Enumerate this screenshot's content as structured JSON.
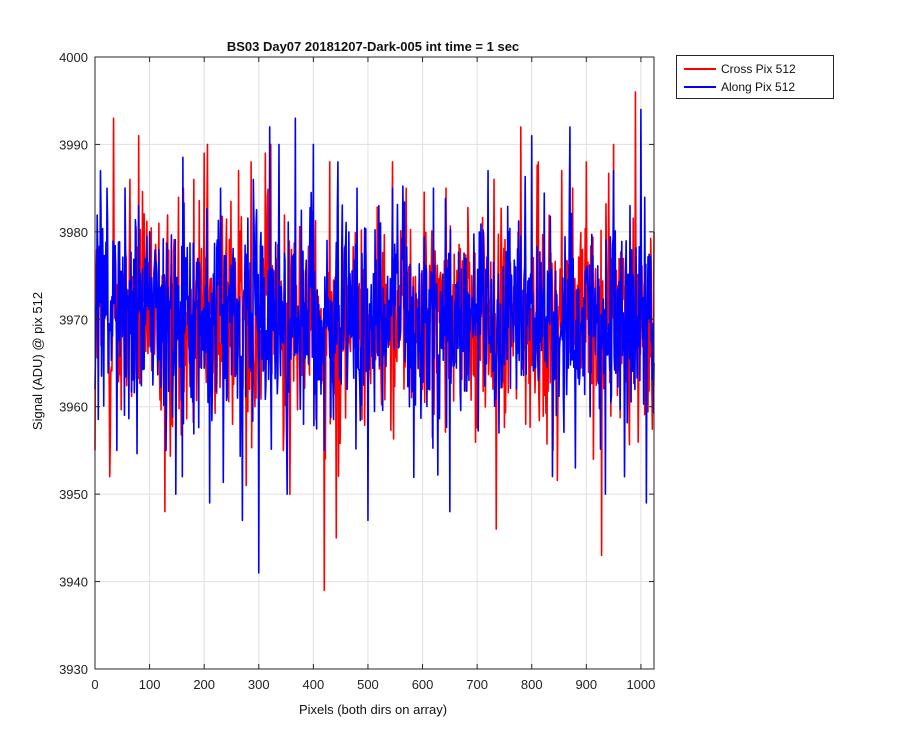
{
  "chart_data": {
    "type": "line",
    "title": "BS03 Day07 20181207-Dark-005 int time = 1 sec",
    "xlabel": "Pixels (both dirs on array)",
    "ylabel": "Signal (ADU) @ pix 512",
    "xlim": [
      0,
      1024
    ],
    "ylim": [
      3930,
      4000
    ],
    "xticks": [
      0,
      100,
      200,
      300,
      400,
      500,
      600,
      700,
      800,
      900,
      1000
    ],
    "yticks": [
      3930,
      3940,
      3950,
      3960,
      3970,
      3980,
      3990,
      4000
    ],
    "grid": true,
    "legend_position": "outside top-right",
    "series": [
      {
        "name": "Cross Pix 512",
        "color": "#ff0000",
        "mean": 3970,
        "noise_note": "dense noisy signal, values approximated",
        "x": [
          0,
          10,
          27,
          34,
          44,
          64,
          80,
          128,
          140,
          162,
          181,
          200,
          206,
          240,
          252,
          263,
          277,
          286,
          312,
          322,
          345,
          357,
          420,
          430,
          442,
          500,
          545,
          570,
          600,
          643,
          690,
          735,
          780,
          789,
          812,
          839,
          855,
          875,
          900,
          928,
          950,
          990,
          1008,
          1024
        ],
        "values": [
          3955,
          3982,
          3952,
          3993,
          3965,
          3986,
          3991,
          3948,
          3958,
          3985,
          3986,
          3989,
          3990,
          3978,
          3958,
          3987,
          3951,
          3988,
          3989,
          3990,
          3955,
          3950,
          3939,
          3988,
          3945,
          3962,
          3988,
          3985,
          3962,
          3985,
          3975,
          3946,
          3992,
          3958,
          3988,
          3955,
          3987,
          3985,
          3988,
          3943,
          3990,
          3996,
          3962,
          3980
        ]
      },
      {
        "name": "Along Pix 512",
        "color": "#0000ff",
        "mean": 3970,
        "noise_note": "dense noisy signal, values approximated",
        "x": [
          0,
          10,
          22,
          40,
          80,
          100,
          130,
          148,
          160,
          210,
          230,
          270,
          290,
          300,
          320,
          337,
          352,
          367,
          382,
          400,
          420,
          445,
          462,
          480,
          500,
          520,
          545,
          576,
          620,
          650,
          685,
          720,
          740,
          770,
          800,
          820,
          845,
          870,
          880,
          900,
          935,
          950,
          970,
          980,
          1000,
          1010,
          1024
        ],
        "values": [
          3962,
          3987,
          3985,
          3955,
          3983,
          3980,
          3955,
          3950,
          3952,
          3949,
          3985,
          3947,
          3986,
          3941,
          3992,
          3990,
          3950,
          3993,
          3958,
          3990,
          3955,
          3988,
          3962,
          3985,
          3947,
          3983,
          3985,
          3960,
          3985,
          3948,
          3963,
          3987,
          3957,
          3976,
          3991,
          3968,
          3959,
          3992,
          3953,
          3976,
          3950,
          3987,
          3952,
          3983,
          3994,
          3949,
          3965
        ]
      }
    ]
  }
}
